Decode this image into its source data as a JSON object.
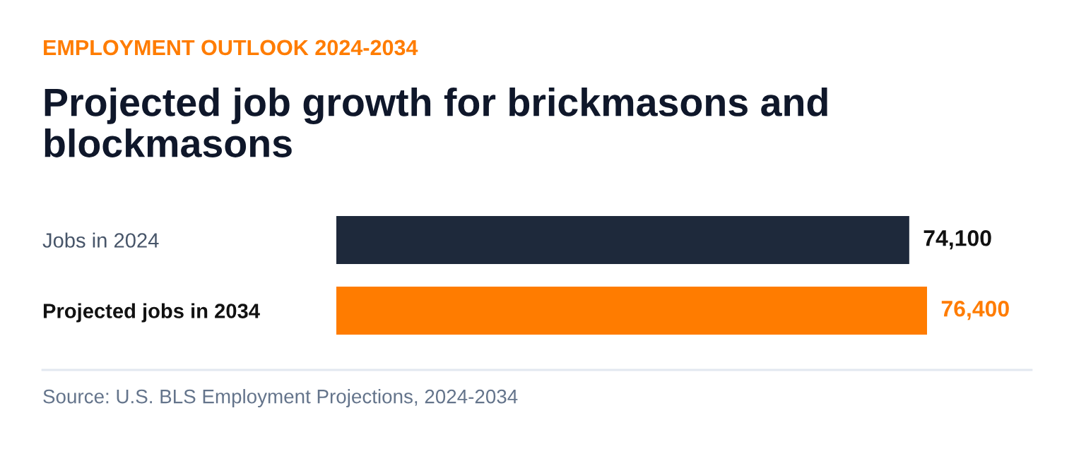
{
  "chart_data": {
    "type": "bar",
    "orientation": "horizontal",
    "subtitle": "EMPLOYMENT OUTLOOK 2024-2034",
    "title": "Projected job growth for brickmasons and blockmasons",
    "categories": [
      "Jobs in 2024",
      "Projected jobs in 2034"
    ],
    "values": [
      74100,
      76400
    ],
    "colors": [
      "#1e293b",
      "#ff7c00"
    ],
    "value_labels": [
      "74,100",
      "76,400"
    ],
    "annotations": [
      "Source: U.S. BLS Employment Projections, 2024-2034"
    ],
    "legend": false
  }
}
